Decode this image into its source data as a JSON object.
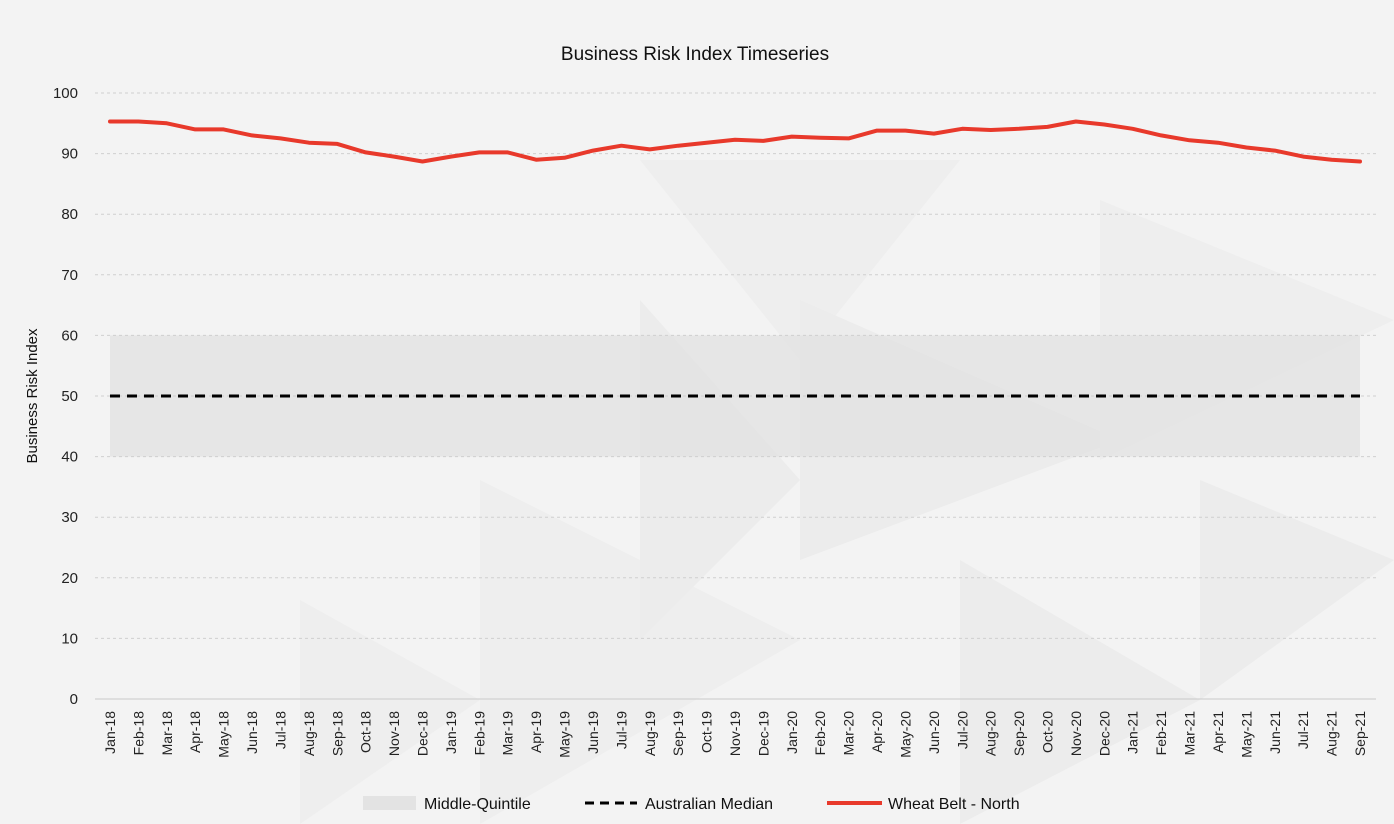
{
  "chart_data": {
    "type": "line",
    "title": "Business Risk Index Timeseries",
    "xlabel": "",
    "ylabel": "Business Risk Index",
    "ylim": [
      0,
      100
    ],
    "yticks": [
      0,
      10,
      20,
      30,
      40,
      50,
      60,
      70,
      80,
      90,
      100
    ],
    "grid": true,
    "legend_position": "bottom",
    "categories": [
      "Jan-18",
      "Feb-18",
      "Mar-18",
      "Apr-18",
      "May-18",
      "Jun-18",
      "Jul-18",
      "Aug-18",
      "Sep-18",
      "Oct-18",
      "Nov-18",
      "Dec-18",
      "Jan-19",
      "Feb-19",
      "Mar-19",
      "Apr-19",
      "May-19",
      "Jun-19",
      "Jul-19",
      "Aug-19",
      "Sep-19",
      "Oct-19",
      "Nov-19",
      "Dec-19",
      "Jan-20",
      "Feb-20",
      "Mar-20",
      "Apr-20",
      "May-20",
      "Jun-20",
      "Jul-20",
      "Aug-20",
      "Sep-20",
      "Oct-20",
      "Nov-20",
      "Dec-20",
      "Jan-21",
      "Feb-21",
      "Mar-21",
      "Apr-21",
      "May-21",
      "Jun-21",
      "Jul-21",
      "Aug-21",
      "Sep-21"
    ],
    "series": [
      {
        "name": "Middle-Quintile",
        "kind": "band",
        "low": 40,
        "high": 60,
        "color": "#e3e3e3"
      },
      {
        "name": "Australian Median",
        "kind": "dashed",
        "value": 50,
        "color": "#000000"
      },
      {
        "name": "Wheat Belt - North",
        "kind": "line",
        "color": "#e8392b",
        "values": [
          95.3,
          95.3,
          95.0,
          94.0,
          94.0,
          93.0,
          92.5,
          91.8,
          91.6,
          90.2,
          89.5,
          88.7,
          89.5,
          90.2,
          90.2,
          89.0,
          89.3,
          90.5,
          91.3,
          90.7,
          91.3,
          91.8,
          92.3,
          92.1,
          92.8,
          92.6,
          92.5,
          93.8,
          93.8,
          93.3,
          94.1,
          93.9,
          94.1,
          94.4,
          95.3,
          94.8,
          94.1,
          93.0,
          92.2,
          91.8,
          91.0,
          90.5,
          89.5,
          89.0,
          88.7
        ]
      }
    ]
  }
}
